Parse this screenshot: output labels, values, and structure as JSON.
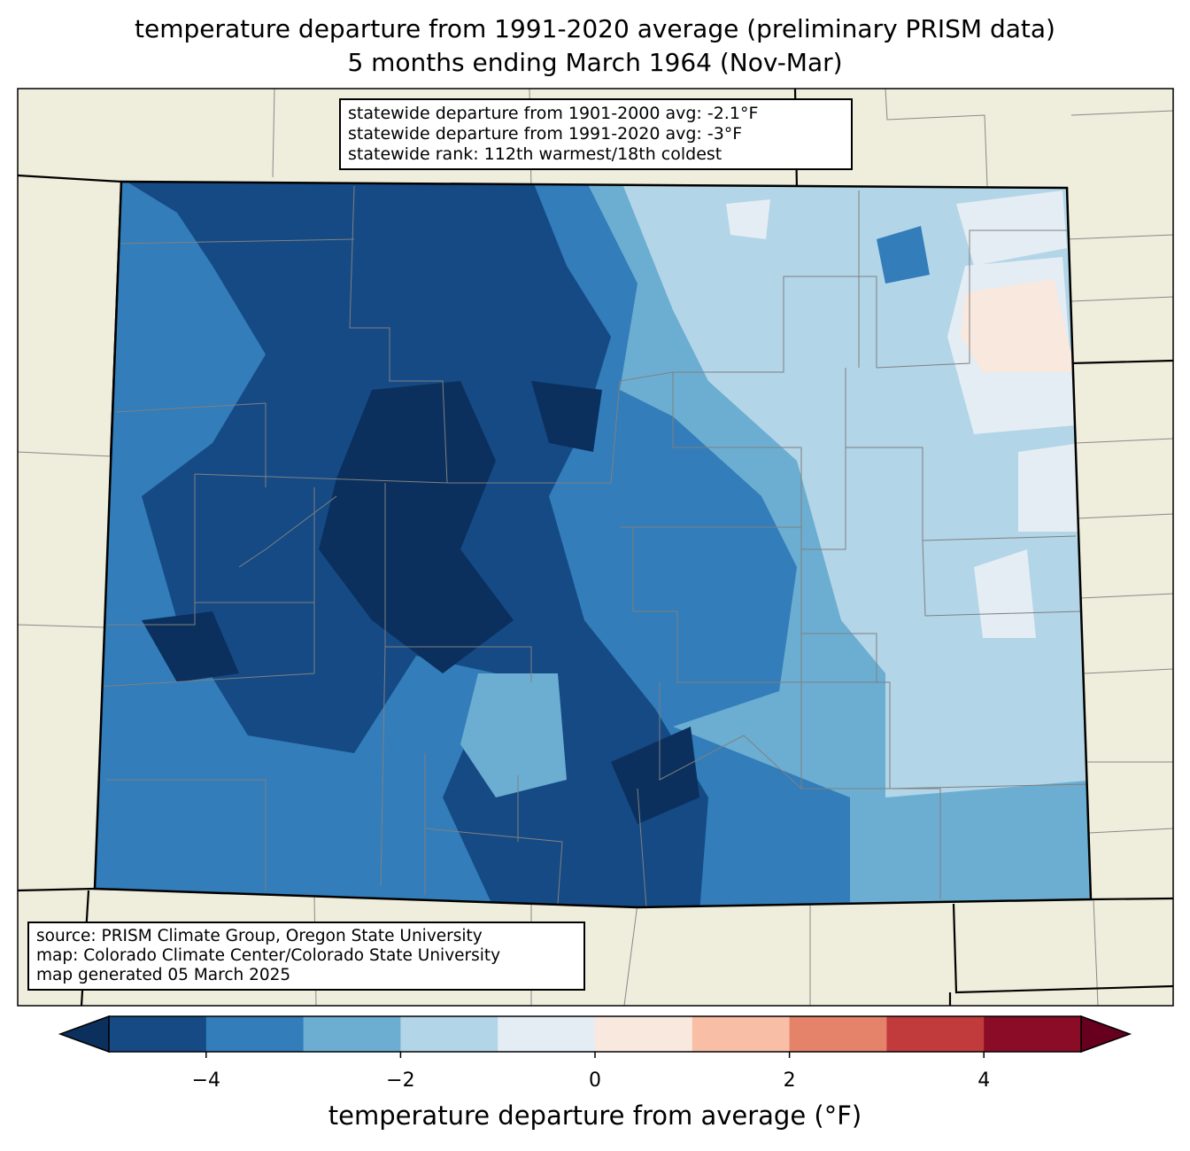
{
  "title": {
    "line1": "temperature departure from 1991-2020 average (preliminary PRISM data)",
    "line2": "5 months ending March 1964 (Nov-Mar)"
  },
  "stats_box": {
    "line1": "statewide departure from 1901-2000 avg: -2.1°F",
    "line2": "statewide departure from 1991-2020 avg: -3°F",
    "line3": "statewide rank: 112th warmest/18th coldest"
  },
  "source_box": {
    "line1": "source: PRISM Climate Group, Oregon State University",
    "line2": "map: Colorado Climate Center/Colorado State University",
    "line3": "map generated 05 March 2025"
  },
  "colorbar": {
    "label": "temperature departure from average (°F)",
    "ticks": [
      "−4",
      "−2",
      "0",
      "2",
      "4"
    ],
    "tick_values": [
      -4,
      -2,
      0,
      2,
      4
    ],
    "range": [
      -5,
      5
    ],
    "bin_edges": [
      -5,
      -4,
      -3,
      -2,
      -1,
      0,
      1,
      2,
      3,
      4,
      5
    ],
    "colors": [
      "#154a85",
      "#327dba",
      "#6baed2",
      "#b2d5e7",
      "#e4edf4",
      "#f9e8de",
      "#f9bfa6",
      "#e4826a",
      "#c23b3c",
      "#8a0c26"
    ],
    "under_color": "#0b305e",
    "over_color": "#67001f"
  },
  "map": {
    "land_color": "#efeedc",
    "region": "Colorado"
  }
}
